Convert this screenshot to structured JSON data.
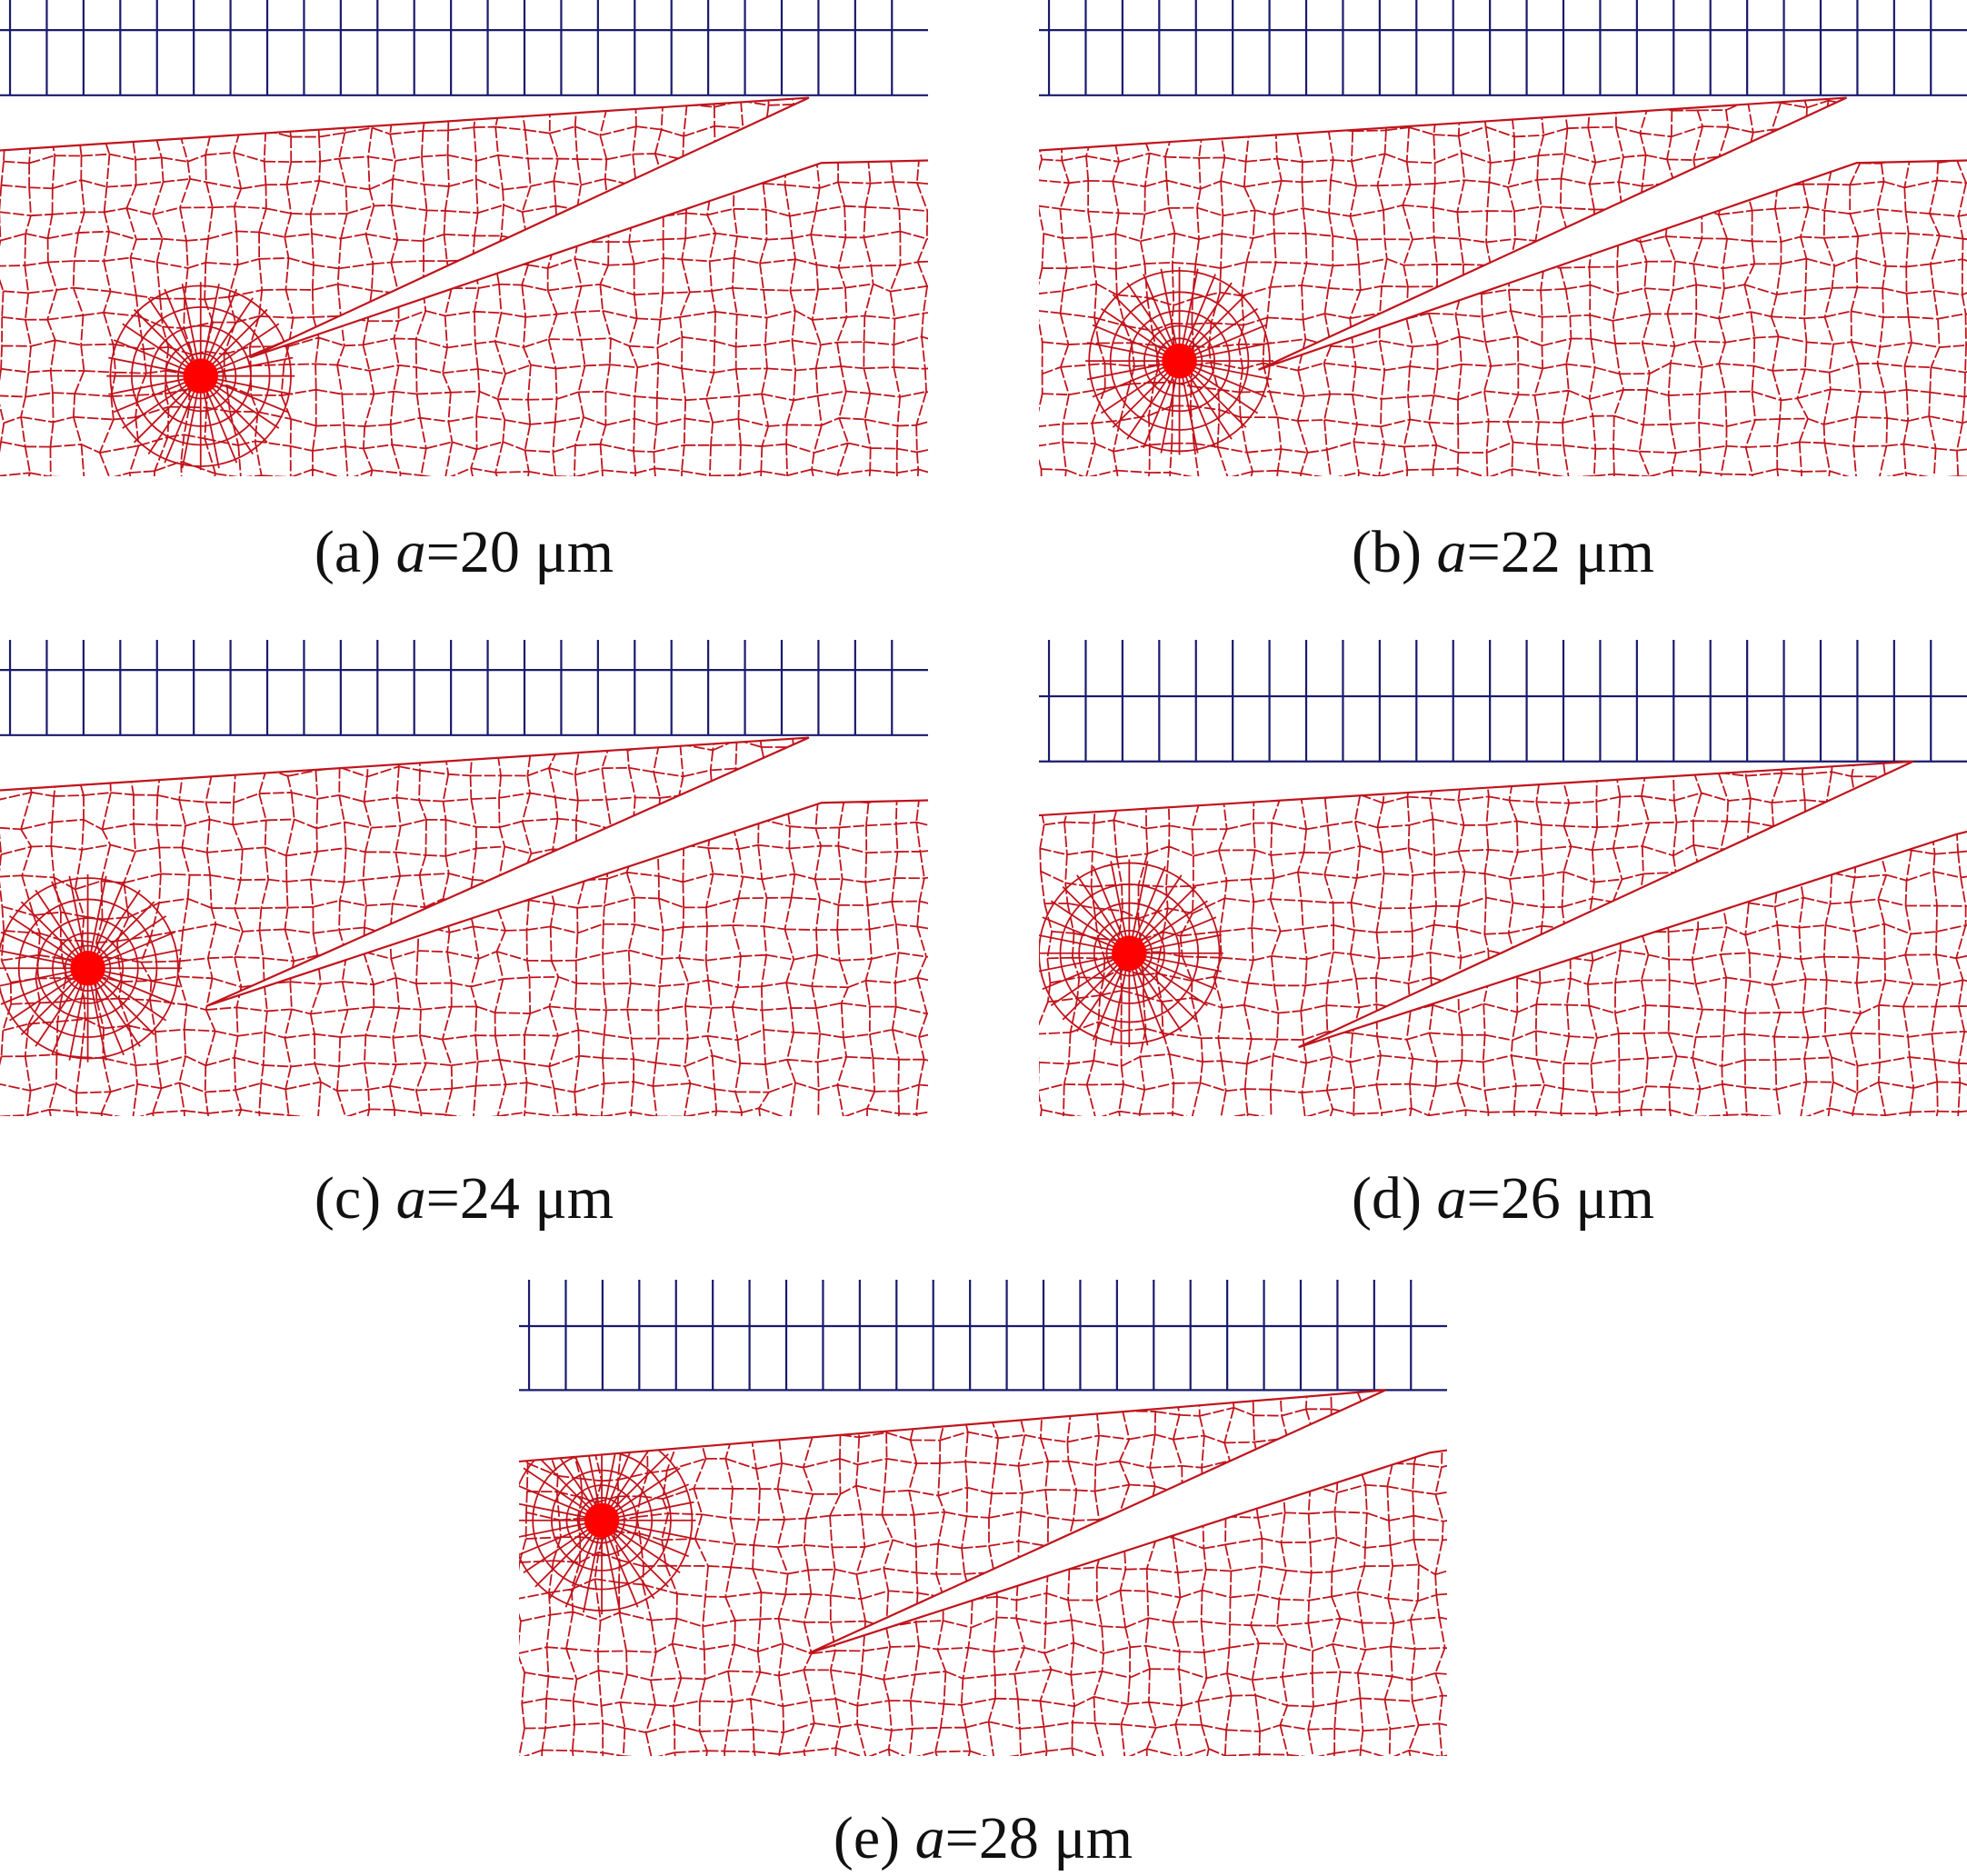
{
  "colors": {
    "mesh_upper": "#1a1a6e",
    "mesh_lower": "#c0141c",
    "focus": "#ff0000"
  },
  "panels": [
    {
      "id": "a",
      "label": "(a)",
      "variable": "a",
      "value": "=20",
      "unit": "μm"
    },
    {
      "id": "b",
      "label": "(b)",
      "variable": "a",
      "value": "=22",
      "unit": "μm"
    },
    {
      "id": "c",
      "label": "(c)",
      "variable": "a",
      "value": "=24",
      "unit": "μm"
    },
    {
      "id": "d",
      "label": "(d)",
      "variable": "a",
      "value": "=26",
      "unit": "μm"
    },
    {
      "id": "e",
      "label": "(e)",
      "variable": "a",
      "value": "=28",
      "unit": "μm"
    }
  ]
}
